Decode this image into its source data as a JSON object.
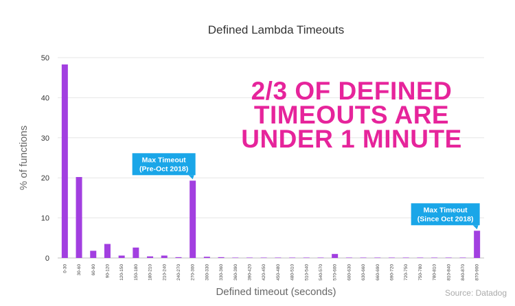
{
  "chart_data": {
    "type": "bar",
    "title": "Defined Lambda Timeouts",
    "xlabel": "Defined timeout (seconds)",
    "ylabel": "% of functions",
    "ylim": [
      0,
      50
    ],
    "yticks": [
      0,
      10,
      20,
      30,
      40,
      50
    ],
    "grid": true,
    "bar_color": "#a23fe0",
    "categories": [
      "0-30",
      "30-60",
      "60-90",
      "90-120",
      "120-150",
      "150-180",
      "180-210",
      "210-240",
      "240-270",
      "270-300",
      "300-330",
      "330-360",
      "360-390",
      "390-420",
      "420-450",
      "450-480",
      "480-510",
      "510-540",
      "540-570",
      "570-600",
      "600-630",
      "630-660",
      "660-690",
      "690-720",
      "720-750",
      "750-780",
      "780-810",
      "810-840",
      "840-870",
      "870-900"
    ],
    "values": [
      48.3,
      20.2,
      1.8,
      3.5,
      0.6,
      2.6,
      0.4,
      0.6,
      0.2,
      19.3,
      0.3,
      0.2,
      0.1,
      0.1,
      0.1,
      0.1,
      0.1,
      0.1,
      0.1,
      1.0,
      0.1,
      0.1,
      0.1,
      0.1,
      0.1,
      0.1,
      0.1,
      0.1,
      0.1,
      6.8
    ],
    "annotations": {
      "headline": {
        "lines": [
          "2/3 OF DEFINED",
          "TIMEOUTS ARE",
          "UNDER 1 MINUTE"
        ],
        "color": "#e6249b"
      },
      "callouts": [
        {
          "lines": [
            "Max Timeout",
            "(Pre-Oct 2018)"
          ],
          "category": "270-300",
          "color": "#1aa6e8"
        },
        {
          "lines": [
            "Max Timeout",
            "(Since Oct 2018)"
          ],
          "category": "870-900",
          "color": "#1aa6e8"
        }
      ]
    },
    "source": "Source: Datadog"
  }
}
